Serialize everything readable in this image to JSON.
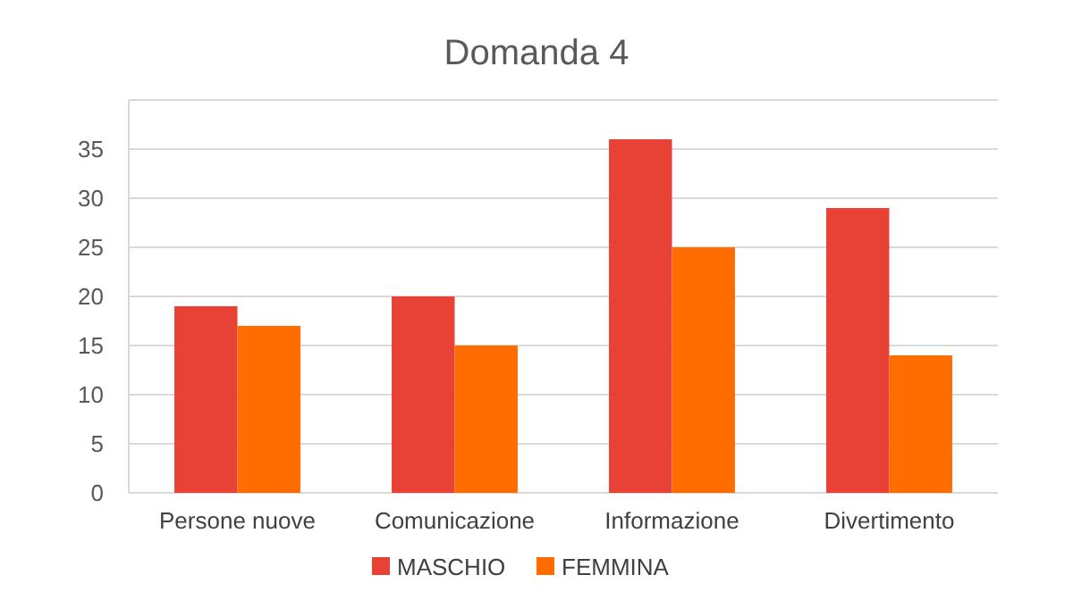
{
  "chart_data": {
    "type": "bar",
    "title": "Domanda 4",
    "categories": [
      "Persone nuove",
      "Comunicazione",
      "Informazione",
      "Divertimento"
    ],
    "series": [
      {
        "name": "MASCHIO",
        "color": "#e84236",
        "values": [
          19,
          20,
          36,
          29
        ]
      },
      {
        "name": "FEMMINA",
        "color": "#ff6d00",
        "values": [
          17,
          15,
          25,
          14
        ]
      }
    ],
    "ylim": [
      0,
      40
    ],
    "yticks": [
      0,
      5,
      10,
      15,
      20,
      25,
      30,
      35,
      {
        "value": 40,
        "label": null
      }
    ],
    "grid": "y",
    "legend": "bottom"
  }
}
